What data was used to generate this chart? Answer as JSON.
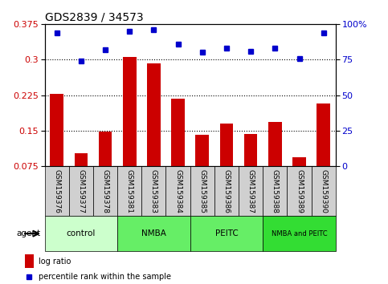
{
  "title": "GDS2839 / 34573",
  "samples": [
    "GSM159376",
    "GSM159377",
    "GSM159378",
    "GSM159381",
    "GSM159383",
    "GSM159384",
    "GSM159385",
    "GSM159386",
    "GSM159387",
    "GSM159388",
    "GSM159389",
    "GSM159390"
  ],
  "log_ratio": [
    0.228,
    0.103,
    0.148,
    0.305,
    0.292,
    0.218,
    0.142,
    0.165,
    0.143,
    0.168,
    0.093,
    0.208
  ],
  "pct_rank": [
    94,
    74,
    82,
    95,
    96,
    86,
    80,
    83,
    81,
    83,
    76,
    94
  ],
  "bar_color": "#cc0000",
  "dot_color": "#0000cc",
  "ylim_left": [
    0.075,
    0.375
  ],
  "ylim_right": [
    0,
    100
  ],
  "yticks_left": [
    0.075,
    0.15,
    0.225,
    0.3,
    0.375
  ],
  "yticks_right": [
    0,
    25,
    50,
    75,
    100
  ],
  "groups": [
    {
      "label": "control",
      "start": 0,
      "end": 3,
      "color": "#ccffcc"
    },
    {
      "label": "NMBA",
      "start": 3,
      "end": 6,
      "color": "#66ee66"
    },
    {
      "label": "PEITC",
      "start": 6,
      "end": 9,
      "color": "#66ee66"
    },
    {
      "label": "NMBA and PEITC",
      "start": 9,
      "end": 12,
      "color": "#33dd33"
    }
  ],
  "agent_label": "agent",
  "legend_bar_label": "log ratio",
  "legend_dot_label": "percentile rank within the sample",
  "bar_color_legend": "#cc0000",
  "dot_color_legend": "#0000cc",
  "xlabel_color": "#cc0000",
  "ylabel_right_color": "#0000cc",
  "tick_bg_color": "#d0d0d0",
  "title_fontsize": 10,
  "tick_label_fontsize": 6.5,
  "group_label_fontsize": 7.5,
  "legend_fontsize": 7,
  "right_ytick_label": [
    "0",
    "25",
    "50",
    "75",
    "100%"
  ]
}
